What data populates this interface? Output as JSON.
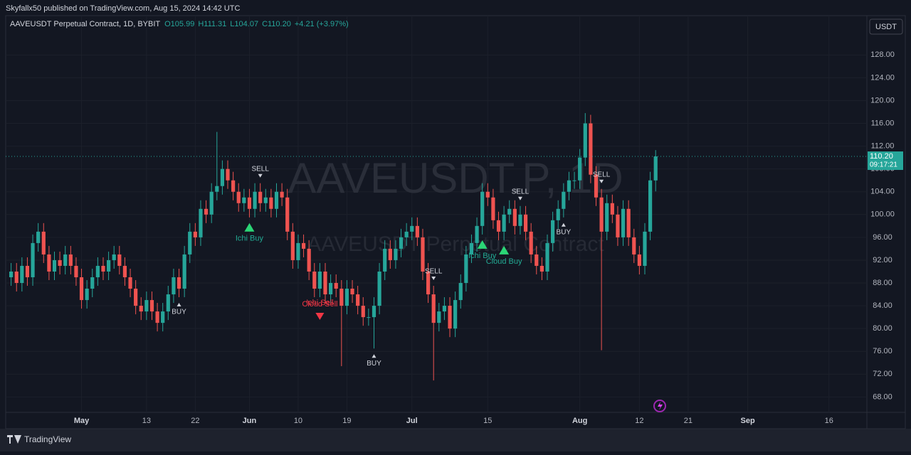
{
  "header": "Skyfallx50 published on TradingView.com, Aug 15, 2024 14:42 UTC",
  "footer": "TradingView",
  "chart_data": {
    "type": "candlestick",
    "legend": {
      "symbol": "AAVEUSDT Perpetual Contract, 1D, BYBIT",
      "values": [
        "O105.99",
        "H111.31",
        "L104.07",
        "C110.20"
      ],
      "change": "+4.21 (+3.97%)"
    },
    "watermark": {
      "title": "AAVEUSDT.P, 1D",
      "subtitle": "AAVEUSDT Perpetual Contract"
    },
    "currency": "USDT",
    "last_price_label": "110.20",
    "countdown": "09:17:21",
    "up_color": "#26a69a",
    "down_color": "#ef5350",
    "x": [
      "2024-04-18",
      "2024-04-19",
      "2024-04-20",
      "2024-04-21",
      "2024-04-22",
      "2024-04-23",
      "2024-04-24",
      "2024-04-25",
      "2024-04-26",
      "2024-04-27",
      "2024-04-28",
      "2024-04-29",
      "2024-04-30",
      "2024-05-01",
      "2024-05-02",
      "2024-05-03",
      "2024-05-04",
      "2024-05-05",
      "2024-05-06",
      "2024-05-07",
      "2024-05-08",
      "2024-05-09",
      "2024-05-10",
      "2024-05-11",
      "2024-05-12",
      "2024-05-13",
      "2024-05-14",
      "2024-05-15",
      "2024-05-16",
      "2024-05-17",
      "2024-05-18",
      "2024-05-19",
      "2024-05-20",
      "2024-05-21",
      "2024-05-22",
      "2024-05-23",
      "2024-05-24",
      "2024-05-25",
      "2024-05-26",
      "2024-05-27",
      "2024-05-28",
      "2024-05-29",
      "2024-05-30",
      "2024-05-31",
      "2024-06-01",
      "2024-06-02",
      "2024-06-03",
      "2024-06-04",
      "2024-06-05",
      "2024-06-06",
      "2024-06-07",
      "2024-06-08",
      "2024-06-09",
      "2024-06-10",
      "2024-06-11",
      "2024-06-12",
      "2024-06-13",
      "2024-06-14",
      "2024-06-15",
      "2024-06-16",
      "2024-06-17",
      "2024-06-18",
      "2024-06-19",
      "2024-06-20",
      "2024-06-21",
      "2024-06-22",
      "2024-06-23",
      "2024-06-24",
      "2024-06-25",
      "2024-06-26",
      "2024-06-27",
      "2024-06-28",
      "2024-06-29",
      "2024-06-30",
      "2024-07-01",
      "2024-07-02",
      "2024-07-03",
      "2024-07-04",
      "2024-07-05",
      "2024-07-06",
      "2024-07-07",
      "2024-07-08",
      "2024-07-09",
      "2024-07-10",
      "2024-07-11",
      "2024-07-12",
      "2024-07-13",
      "2024-07-14",
      "2024-07-15",
      "2024-07-16",
      "2024-07-17",
      "2024-07-18",
      "2024-07-19",
      "2024-07-20",
      "2024-07-21",
      "2024-07-22",
      "2024-07-23",
      "2024-07-24",
      "2024-07-25",
      "2024-07-26",
      "2024-07-27",
      "2024-07-28",
      "2024-07-29",
      "2024-07-30",
      "2024-07-31",
      "2024-08-01",
      "2024-08-02",
      "2024-08-03",
      "2024-08-04",
      "2024-08-05",
      "2024-08-06",
      "2024-08-07",
      "2024-08-08",
      "2024-08-09",
      "2024-08-10",
      "2024-08-11",
      "2024-08-12",
      "2024-08-13",
      "2024-08-14",
      "2024-08-15"
    ],
    "open": [
      89,
      90,
      88,
      91,
      89,
      95,
      97,
      93,
      90,
      92,
      91,
      93,
      91,
      89,
      85,
      87,
      89,
      91,
      90,
      92,
      93,
      91,
      89,
      87,
      84,
      83,
      85,
      83,
      81,
      83,
      86,
      89,
      87,
      93,
      97,
      96,
      101,
      100,
      104,
      105,
      108,
      106,
      104,
      102,
      103,
      101,
      104,
      102,
      103,
      101,
      104,
      103,
      97,
      92,
      95,
      94,
      90,
      87,
      90,
      86,
      88,
      87,
      84,
      87,
      86,
      84,
      82,
      82,
      84,
      90,
      94,
      92,
      94,
      96,
      97,
      98,
      96,
      90,
      86,
      81,
      83,
      84,
      80,
      85,
      88,
      93,
      95,
      98,
      104,
      103,
      99,
      97,
      100,
      101,
      98,
      100,
      97,
      93,
      91,
      90,
      95,
      99,
      101,
      104,
      106,
      106,
      110,
      116,
      107,
      103,
      97,
      102,
      100,
      96,
      101,
      96,
      93,
      91,
      97,
      105.99
    ],
    "high": [
      91.5,
      91.5,
      92.5,
      92.5,
      96.5,
      98.5,
      98.5,
      94.5,
      93.5,
      93.5,
      94.5,
      94.5,
      92.5,
      90.5,
      88.5,
      90.5,
      92.5,
      92.5,
      93.5,
      94.5,
      94.5,
      92.5,
      90.5,
      88.5,
      85.5,
      86.5,
      86.5,
      84.5,
      84.5,
      87.5,
      90.5,
      90.5,
      94.5,
      98.5,
      98.5,
      102.5,
      102.5,
      105.5,
      114.5,
      109.5,
      109.5,
      107.5,
      105.5,
      104.5,
      104.5,
      105.5,
      105.5,
      104.5,
      104.5,
      105.5,
      105.5,
      104.5,
      98.5,
      96.5,
      96.5,
      95.5,
      91.5,
      91.5,
      91.5,
      89.5,
      89.5,
      88.5,
      88.5,
      88.5,
      87.5,
      85.5,
      83.5,
      85.5,
      91.5,
      95.5,
      95.5,
      95.5,
      97.5,
      98.5,
      99.5,
      99.5,
      97.5,
      91.5,
      87.5,
      84.5,
      85.5,
      85.5,
      86.5,
      89.5,
      94.5,
      96.5,
      99.5,
      105.5,
      105.5,
      104.5,
      100.5,
      101.5,
      102.5,
      102.5,
      101.5,
      101.5,
      98.5,
      94.5,
      92.5,
      96.5,
      100.5,
      102.5,
      105.5,
      107.5,
      107.5,
      111.5,
      117.8,
      117.5,
      108.5,
      104.5,
      103.5,
      103.5,
      101.5,
      102.5,
      102.5,
      97.5,
      94.5,
      98.5,
      107.5,
      111.31
    ],
    "low": [
      87.5,
      86.5,
      86.5,
      87.5,
      87.5,
      93.5,
      91.5,
      88.5,
      88.5,
      89.5,
      89.5,
      89.5,
      87.5,
      83.5,
      83.5,
      85.5,
      87.5,
      88.5,
      88.5,
      90.5,
      89.5,
      87.5,
      85.5,
      82.5,
      81.5,
      81.5,
      81.5,
      79.5,
      79.5,
      81.5,
      84.5,
      85.5,
      85.5,
      91.5,
      94.5,
      94.5,
      98.5,
      98.5,
      102.5,
      103.5,
      104.5,
      102.5,
      100.5,
      100.5,
      99.5,
      99.5,
      100.5,
      100.5,
      99.5,
      99.5,
      101.5,
      95.5,
      90.5,
      90.5,
      92.5,
      88.5,
      85.5,
      85.5,
      84.5,
      84.5,
      85.5,
      73.4,
      82.5,
      84.5,
      82.5,
      80.5,
      80.5,
      76.5,
      82.5,
      88.5,
      90.5,
      90.5,
      92.5,
      94.5,
      95.5,
      94.5,
      88.5,
      84.5,
      70.9,
      79.5,
      81.5,
      78.5,
      78.5,
      83.5,
      86.5,
      91.5,
      93.5,
      96.5,
      101.5,
      97.5,
      95.5,
      95.5,
      98.5,
      96.5,
      96.5,
      95.5,
      91.5,
      89.5,
      88.5,
      88.5,
      93.5,
      97.5,
      99.5,
      102.5,
      104.5,
      104.5,
      108.5,
      105.5,
      101.5,
      76.2,
      95.5,
      98.5,
      94.5,
      94.5,
      94.5,
      91.5,
      89.5,
      89.5,
      95.5,
      104.07
    ],
    "close": [
      90,
      88,
      91,
      89,
      95,
      97,
      93,
      90,
      92,
      91,
      93,
      91,
      89,
      85,
      87,
      89,
      91,
      90,
      92,
      93,
      91,
      89,
      87,
      84,
      83,
      85,
      83,
      81,
      83,
      86,
      89,
      87,
      93,
      97,
      96,
      101,
      100,
      104,
      105,
      108,
      106,
      104,
      102,
      103,
      101,
      104,
      102,
      103,
      101,
      104,
      103,
      97,
      92,
      95,
      94,
      90,
      87,
      90,
      86,
      88,
      87,
      84,
      87,
      86,
      84,
      82,
      82,
      84,
      90,
      94,
      92,
      94,
      96,
      97,
      98,
      96,
      90,
      86,
      81,
      83,
      84,
      80,
      85,
      88,
      93,
      95,
      98,
      104,
      103,
      99,
      97,
      100,
      101,
      98,
      100,
      97,
      93,
      91,
      90,
      95,
      99,
      101,
      104,
      106,
      106,
      110,
      116,
      107,
      103,
      97,
      102,
      100,
      96,
      101,
      96,
      93,
      91,
      97,
      106,
      110.2
    ],
    "annotations": [
      {
        "text": "BUY",
        "x": "2024-05-19"
      },
      {
        "text": "Ichi Buy",
        "x": "2024-06-01"
      },
      {
        "text": "SELL",
        "x": "2024-06-03"
      },
      {
        "text": "Ichi Sell",
        "x": "2024-06-14"
      },
      {
        "text": "Cloud Sell",
        "x": "2024-06-14"
      },
      {
        "text": "BUY",
        "x": "2024-06-24"
      },
      {
        "text": "SELL",
        "x": "2024-07-05"
      },
      {
        "text": "Ichi Buy",
        "x": "2024-07-14"
      },
      {
        "text": "Cloud Buy",
        "x": "2024-07-18"
      },
      {
        "text": "SELL",
        "x": "2024-07-21"
      },
      {
        "text": "BUY",
        "x": "2024-07-29"
      },
      {
        "text": "SELL",
        "x": "2024-08-05"
      }
    ],
    "xlim": [
      "2024-04-17",
      "2024-09-23"
    ],
    "xticks": [
      {
        "value": "2024-05-01",
        "label": "May"
      },
      {
        "value": "2024-05-13",
        "label": "13"
      },
      {
        "value": "2024-05-22",
        "label": "22"
      },
      {
        "value": "2024-06-01",
        "label": "Jun"
      },
      {
        "value": "2024-06-10",
        "label": "10"
      },
      {
        "value": "2024-06-19",
        "label": "19"
      },
      {
        "value": "2024-07-01",
        "label": "Jul"
      },
      {
        "value": "2024-07-15",
        "label": "15"
      },
      {
        "value": "2024-08-01",
        "label": "Aug"
      },
      {
        "value": "2024-08-12",
        "label": "12"
      },
      {
        "value": "2024-08-21",
        "label": "21"
      },
      {
        "value": "2024-09-01",
        "label": "Sep"
      },
      {
        "value": "2024-09-16",
        "label": "16"
      }
    ],
    "ylim": [
      65.3,
      134.9
    ],
    "yticks": [
      {
        "value": 68,
        "label": "68.00"
      },
      {
        "value": 72,
        "label": "72.00"
      },
      {
        "value": 76,
        "label": "76.00"
      },
      {
        "value": 80,
        "label": "80.00"
      },
      {
        "value": 84,
        "label": "84.00"
      },
      {
        "value": 88,
        "label": "88.00"
      },
      {
        "value": 92,
        "label": "92.00"
      },
      {
        "value": 96,
        "label": "96.00"
      },
      {
        "value": 100,
        "label": "100.00"
      },
      {
        "value": 104,
        "label": "104.00"
      },
      {
        "value": 108,
        "label": "108.00"
      },
      {
        "value": 112,
        "label": "112.00"
      },
      {
        "value": 116,
        "label": "116.00"
      },
      {
        "value": 120,
        "label": "120.00"
      },
      {
        "value": 124,
        "label": "124.00"
      },
      {
        "value": 128,
        "label": "128.00"
      }
    ],
    "grid": true
  }
}
